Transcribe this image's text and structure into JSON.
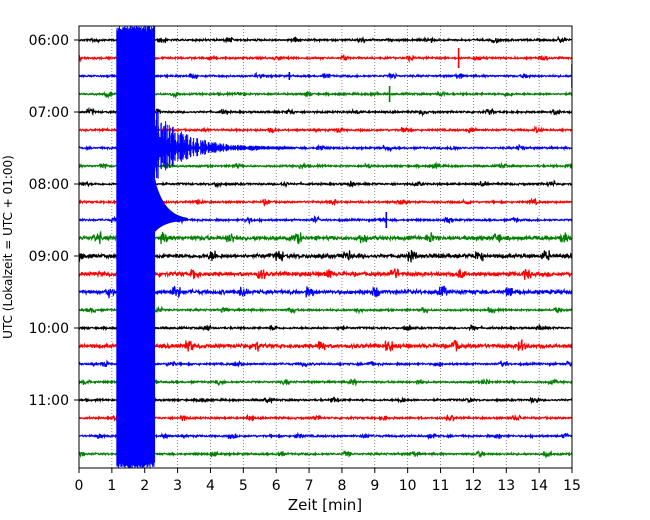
{
  "chart_data": {
    "type": "line",
    "title": "",
    "xlabel": "Zeit  [min]",
    "ylabel": "UTC (Lokalzeit = UTC + 01:00)",
    "xlim": [
      0,
      15
    ],
    "x_ticks": [
      "0",
      "1",
      "2",
      "3",
      "4",
      "5",
      "6",
      "7",
      "8",
      "9",
      "10",
      "11",
      "12",
      "13",
      "14",
      "15"
    ],
    "y_ticks": [
      "06:00",
      "07:00",
      "08:00",
      "09:00",
      "10:00",
      "11:00"
    ],
    "grid": "vertical-dotted",
    "trace_colors": [
      "#000000",
      "#ff0000",
      "#0000ff",
      "#008000"
    ],
    "traces": [
      {
        "start": "06:00",
        "color": "#000000"
      },
      {
        "start": "06:15",
        "color": "#ff0000"
      },
      {
        "start": "06:30",
        "color": "#0000ff"
      },
      {
        "start": "06:45",
        "color": "#008000"
      },
      {
        "start": "07:00",
        "color": "#000000"
      },
      {
        "start": "07:15",
        "color": "#ff0000"
      },
      {
        "start": "07:30",
        "color": "#0000ff"
      },
      {
        "start": "07:45",
        "color": "#008000"
      },
      {
        "start": "08:00",
        "color": "#000000"
      },
      {
        "start": "08:15",
        "color": "#ff0000"
      },
      {
        "start": "08:30",
        "color": "#0000ff"
      },
      {
        "start": "08:45",
        "color": "#008000"
      },
      {
        "start": "09:00",
        "color": "#000000"
      },
      {
        "start": "09:15",
        "color": "#ff0000"
      },
      {
        "start": "09:30",
        "color": "#0000ff"
      },
      {
        "start": "09:45",
        "color": "#008000"
      },
      {
        "start": "10:00",
        "color": "#000000"
      },
      {
        "start": "10:15",
        "color": "#ff0000"
      },
      {
        "start": "10:30",
        "color": "#0000ff"
      },
      {
        "start": "10:45",
        "color": "#008000"
      },
      {
        "start": "11:00",
        "color": "#000000"
      },
      {
        "start": "11:15",
        "color": "#ff0000"
      },
      {
        "start": "11:30",
        "color": "#0000ff"
      },
      {
        "start": "11:45",
        "color": "#008000"
      }
    ],
    "event": {
      "color": "#0000ff",
      "onset_min": 1.15,
      "strong_until_min": 2.3,
      "coda_end_min": 6.5
    }
  }
}
